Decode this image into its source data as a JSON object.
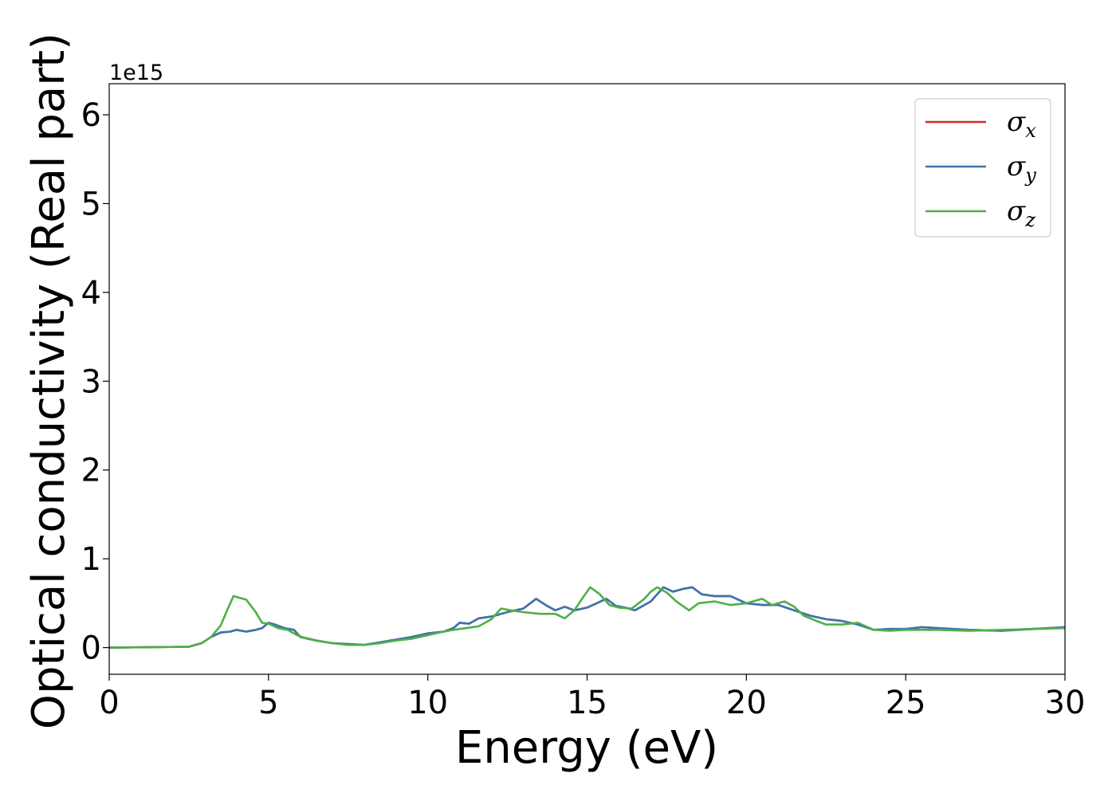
{
  "chart_data": {
    "type": "line",
    "title": "",
    "xlabel": "Energy (eV)",
    "ylabel": "Optical conductivity (Real part)",
    "y_offset_label": "1e15",
    "xlim": [
      0,
      30
    ],
    "ylim": [
      -0.3,
      6.35
    ],
    "x_ticks": [
      0,
      5,
      10,
      15,
      20,
      25,
      30
    ],
    "x_tick_labels": [
      "0",
      "5",
      "10",
      "15",
      "20",
      "25",
      "30"
    ],
    "y_ticks": [
      0,
      1,
      2,
      3,
      4,
      5,
      6
    ],
    "y_tick_labels": [
      "0",
      "1",
      "2",
      "3",
      "4",
      "5",
      "6"
    ],
    "grid": false,
    "legend_position": "top-right",
    "legend": [
      {
        "symbol": "σ",
        "sub": "x",
        "color": "#d62728"
      },
      {
        "symbol": "σ",
        "sub": "y",
        "color": "#3b75af"
      },
      {
        "symbol": "σ",
        "sub": "z",
        "color": "#4daf4a"
      }
    ],
    "series": [
      {
        "name": "σx",
        "color": "#d62728",
        "points": [
          [
            0,
            0
          ],
          [
            2.5,
            0.01
          ],
          [
            2.9,
            0.05
          ],
          [
            3.2,
            0.12
          ],
          [
            3.5,
            0.17
          ],
          [
            3.8,
            0.18
          ],
          [
            4.0,
            0.2
          ],
          [
            4.3,
            0.18
          ],
          [
            4.6,
            0.2
          ],
          [
            4.8,
            0.22
          ],
          [
            5.0,
            0.28
          ],
          [
            5.2,
            0.26
          ],
          [
            5.5,
            0.22
          ],
          [
            5.8,
            0.2
          ],
          [
            6.0,
            0.12
          ],
          [
            6.5,
            0.08
          ],
          [
            7.0,
            0.05
          ],
          [
            7.5,
            0.04
          ],
          [
            8.0,
            0.03
          ],
          [
            8.5,
            0.06
          ],
          [
            9.0,
            0.09
          ],
          [
            9.5,
            0.12
          ],
          [
            10.0,
            0.16
          ],
          [
            10.5,
            0.18
          ],
          [
            10.8,
            0.22
          ],
          [
            11.0,
            0.28
          ],
          [
            11.3,
            0.27
          ],
          [
            11.6,
            0.33
          ],
          [
            12.0,
            0.35
          ],
          [
            12.5,
            0.4
          ],
          [
            13.0,
            0.44
          ],
          [
            13.4,
            0.55
          ],
          [
            13.7,
            0.48
          ],
          [
            14.0,
            0.42
          ],
          [
            14.3,
            0.46
          ],
          [
            14.6,
            0.42
          ],
          [
            15.0,
            0.45
          ],
          [
            15.3,
            0.5
          ],
          [
            15.6,
            0.55
          ],
          [
            15.9,
            0.47
          ],
          [
            16.2,
            0.45
          ],
          [
            16.5,
            0.42
          ],
          [
            17.0,
            0.52
          ],
          [
            17.4,
            0.68
          ],
          [
            17.7,
            0.63
          ],
          [
            18.0,
            0.66
          ],
          [
            18.3,
            0.68
          ],
          [
            18.6,
            0.6
          ],
          [
            19.0,
            0.58
          ],
          [
            19.5,
            0.58
          ],
          [
            20.0,
            0.5
          ],
          [
            20.5,
            0.48
          ],
          [
            21.0,
            0.48
          ],
          [
            21.5,
            0.42
          ],
          [
            22.0,
            0.36
          ],
          [
            22.5,
            0.32
          ],
          [
            23.0,
            0.3
          ],
          [
            23.5,
            0.26
          ],
          [
            24.0,
            0.2
          ],
          [
            24.5,
            0.21
          ],
          [
            25.0,
            0.21
          ],
          [
            25.5,
            0.23
          ],
          [
            26.0,
            0.22
          ],
          [
            27.0,
            0.2
          ],
          [
            28.0,
            0.19
          ],
          [
            29.0,
            0.21
          ],
          [
            30.0,
            0.23
          ]
        ]
      },
      {
        "name": "σy",
        "color": "#3b75af",
        "points": [
          [
            0,
            0
          ],
          [
            2.5,
            0.01
          ],
          [
            2.9,
            0.05
          ],
          [
            3.2,
            0.12
          ],
          [
            3.5,
            0.17
          ],
          [
            3.8,
            0.18
          ],
          [
            4.0,
            0.2
          ],
          [
            4.3,
            0.18
          ],
          [
            4.6,
            0.2
          ],
          [
            4.8,
            0.22
          ],
          [
            5.0,
            0.28
          ],
          [
            5.2,
            0.26
          ],
          [
            5.5,
            0.22
          ],
          [
            5.8,
            0.2
          ],
          [
            6.0,
            0.12
          ],
          [
            6.5,
            0.08
          ],
          [
            7.0,
            0.05
          ],
          [
            7.5,
            0.04
          ],
          [
            8.0,
            0.03
          ],
          [
            8.5,
            0.06
          ],
          [
            9.0,
            0.09
          ],
          [
            9.5,
            0.12
          ],
          [
            10.0,
            0.16
          ],
          [
            10.5,
            0.18
          ],
          [
            10.8,
            0.22
          ],
          [
            11.0,
            0.28
          ],
          [
            11.3,
            0.27
          ],
          [
            11.6,
            0.33
          ],
          [
            12.0,
            0.35
          ],
          [
            12.5,
            0.4
          ],
          [
            13.0,
            0.44
          ],
          [
            13.4,
            0.55
          ],
          [
            13.7,
            0.48
          ],
          [
            14.0,
            0.42
          ],
          [
            14.3,
            0.46
          ],
          [
            14.6,
            0.42
          ],
          [
            15.0,
            0.45
          ],
          [
            15.3,
            0.5
          ],
          [
            15.6,
            0.55
          ],
          [
            15.9,
            0.47
          ],
          [
            16.2,
            0.45
          ],
          [
            16.5,
            0.42
          ],
          [
            17.0,
            0.52
          ],
          [
            17.4,
            0.68
          ],
          [
            17.7,
            0.63
          ],
          [
            18.0,
            0.66
          ],
          [
            18.3,
            0.68
          ],
          [
            18.6,
            0.6
          ],
          [
            19.0,
            0.58
          ],
          [
            19.5,
            0.58
          ],
          [
            20.0,
            0.5
          ],
          [
            20.5,
            0.48
          ],
          [
            21.0,
            0.48
          ],
          [
            21.5,
            0.42
          ],
          [
            22.0,
            0.36
          ],
          [
            22.5,
            0.32
          ],
          [
            23.0,
            0.3
          ],
          [
            23.5,
            0.26
          ],
          [
            24.0,
            0.2
          ],
          [
            24.5,
            0.21
          ],
          [
            25.0,
            0.21
          ],
          [
            25.5,
            0.23
          ],
          [
            26.0,
            0.22
          ],
          [
            27.0,
            0.2
          ],
          [
            28.0,
            0.19
          ],
          [
            29.0,
            0.21
          ],
          [
            30.0,
            0.23
          ]
        ]
      },
      {
        "name": "σz",
        "color": "#4daf4a",
        "points": [
          [
            0,
            0
          ],
          [
            2.5,
            0.01
          ],
          [
            2.9,
            0.05
          ],
          [
            3.2,
            0.12
          ],
          [
            3.5,
            0.25
          ],
          [
            3.7,
            0.42
          ],
          [
            3.9,
            0.58
          ],
          [
            4.1,
            0.56
          ],
          [
            4.3,
            0.54
          ],
          [
            4.6,
            0.4
          ],
          [
            4.8,
            0.28
          ],
          [
            5.0,
            0.27
          ],
          [
            5.3,
            0.22
          ],
          [
            5.6,
            0.2
          ],
          [
            5.9,
            0.14
          ],
          [
            6.2,
            0.1
          ],
          [
            6.5,
            0.08
          ],
          [
            7.0,
            0.05
          ],
          [
            7.5,
            0.03
          ],
          [
            8.0,
            0.03
          ],
          [
            8.5,
            0.05
          ],
          [
            9.0,
            0.08
          ],
          [
            9.5,
            0.1
          ],
          [
            10.0,
            0.14
          ],
          [
            10.5,
            0.18
          ],
          [
            10.8,
            0.2
          ],
          [
            11.2,
            0.22
          ],
          [
            11.6,
            0.24
          ],
          [
            12.0,
            0.32
          ],
          [
            12.3,
            0.44
          ],
          [
            12.6,
            0.42
          ],
          [
            13.0,
            0.4
          ],
          [
            13.5,
            0.38
          ],
          [
            14.0,
            0.38
          ],
          [
            14.3,
            0.33
          ],
          [
            14.6,
            0.42
          ],
          [
            14.9,
            0.58
          ],
          [
            15.1,
            0.68
          ],
          [
            15.4,
            0.6
          ],
          [
            15.7,
            0.48
          ],
          [
            16.0,
            0.45
          ],
          [
            16.4,
            0.44
          ],
          [
            16.8,
            0.55
          ],
          [
            17.0,
            0.63
          ],
          [
            17.2,
            0.68
          ],
          [
            17.5,
            0.62
          ],
          [
            17.8,
            0.52
          ],
          [
            18.2,
            0.42
          ],
          [
            18.5,
            0.5
          ],
          [
            19.0,
            0.52
          ],
          [
            19.5,
            0.48
          ],
          [
            20.0,
            0.5
          ],
          [
            20.5,
            0.55
          ],
          [
            20.8,
            0.48
          ],
          [
            21.2,
            0.52
          ],
          [
            21.5,
            0.46
          ],
          [
            21.8,
            0.36
          ],
          [
            22.2,
            0.3
          ],
          [
            22.5,
            0.26
          ],
          [
            23.0,
            0.26
          ],
          [
            23.5,
            0.28
          ],
          [
            24.0,
            0.2
          ],
          [
            24.5,
            0.19
          ],
          [
            25.0,
            0.2
          ],
          [
            25.5,
            0.2
          ],
          [
            26.0,
            0.2
          ],
          [
            27.0,
            0.19
          ],
          [
            28.0,
            0.2
          ],
          [
            29.0,
            0.21
          ],
          [
            30.0,
            0.22
          ]
        ]
      }
    ]
  }
}
